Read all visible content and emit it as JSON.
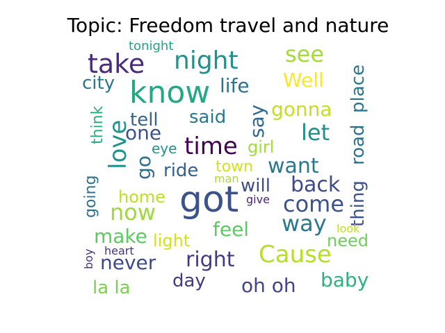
{
  "chart_data": {
    "type": "wordcloud",
    "title": "Topic: Freedom travel and nature",
    "words": [
      {
        "text": "know",
        "color": "#23a884"
      },
      {
        "text": "got",
        "color": "#3b528b"
      },
      {
        "text": "take",
        "color": "#472d7b"
      },
      {
        "text": "night",
        "color": "#21918c"
      },
      {
        "text": "see",
        "color": "#a5db36"
      },
      {
        "text": "time",
        "color": "#440154"
      },
      {
        "text": "love",
        "color": "#21918c"
      },
      {
        "text": "Cause",
        "color": "#b5de2b"
      },
      {
        "text": "now",
        "color": "#a0da39"
      },
      {
        "text": "come",
        "color": "#3b528b"
      },
      {
        "text": "right",
        "color": "#443a83"
      },
      {
        "text": "want",
        "color": "#2a788e"
      },
      {
        "text": "way",
        "color": "#2a788e"
      },
      {
        "text": "let",
        "color": "#218e8d"
      },
      {
        "text": "back",
        "color": "#3e4a89"
      },
      {
        "text": "Well",
        "color": "#fde725"
      },
      {
        "text": "life",
        "color": "#2c728e"
      },
      {
        "text": "one",
        "color": "#3b528b"
      },
      {
        "text": "oh oh",
        "color": "#414487"
      },
      {
        "text": "baby",
        "color": "#2db27d"
      },
      {
        "text": "never",
        "color": "#3e4989"
      },
      {
        "text": "make",
        "color": "#5ec962"
      },
      {
        "text": "feel",
        "color": "#5ec962"
      },
      {
        "text": "go",
        "color": "#2d708e"
      },
      {
        "text": "say",
        "color": "#31688e"
      },
      {
        "text": "gonna",
        "color": "#c2df23"
      },
      {
        "text": "city",
        "color": "#2a788e"
      },
      {
        "text": "tell",
        "color": "#33638d"
      },
      {
        "text": "said",
        "color": "#2a788e"
      },
      {
        "text": "ride",
        "color": "#355f8d"
      },
      {
        "text": "place",
        "color": "#2a788e"
      },
      {
        "text": "road",
        "color": "#2c728e"
      },
      {
        "text": "thing",
        "color": "#3b528b"
      },
      {
        "text": "girl",
        "color": "#a5db36"
      },
      {
        "text": "town",
        "color": "#d2e21b"
      },
      {
        "text": "will",
        "color": "#3e4a89"
      },
      {
        "text": "day",
        "color": "#453882"
      },
      {
        "text": "la la",
        "color": "#7ad151"
      },
      {
        "text": "light",
        "color": "#d2e21b"
      },
      {
        "text": "home",
        "color": "#bddf26"
      },
      {
        "text": "need",
        "color": "#6ece58"
      },
      {
        "text": "think",
        "color": "#29af7f"
      },
      {
        "text": "going",
        "color": "#2c728e"
      },
      {
        "text": "eye",
        "color": "#21918c"
      },
      {
        "text": "tonight",
        "color": "#20a386"
      },
      {
        "text": "man",
        "color": "#a8db34"
      },
      {
        "text": "give",
        "color": "#482475"
      },
      {
        "text": "look",
        "color": "#bddf26"
      },
      {
        "text": "heart",
        "color": "#46327e"
      },
      {
        "text": "boy",
        "color": "#46307e"
      }
    ]
  }
}
